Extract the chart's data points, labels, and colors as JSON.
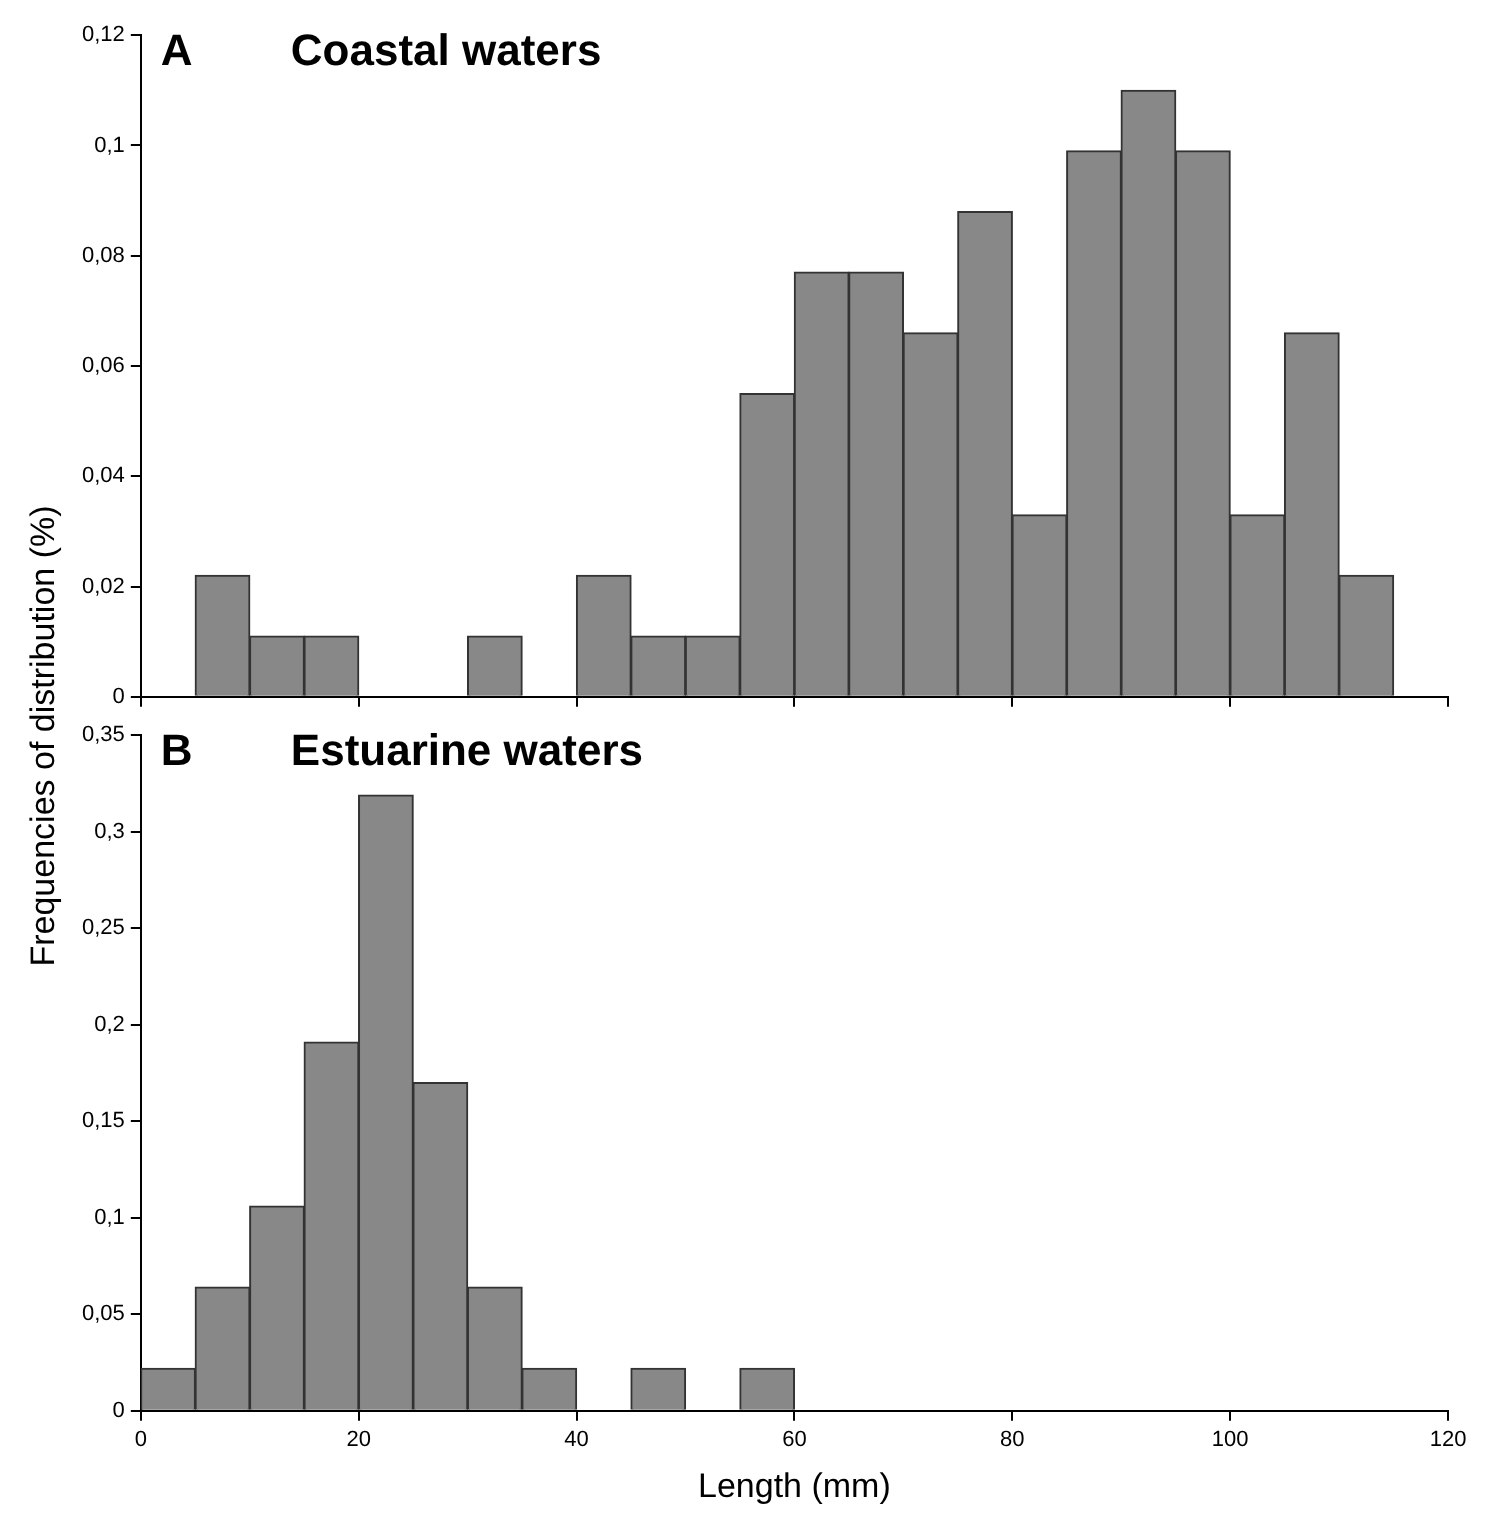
{
  "chart_data": [
    {
      "type": "histogram",
      "title": "Coastal waters",
      "annotations": [
        "A"
      ],
      "ylabel": "Frequencies of distribution (%)",
      "color": "#888888",
      "bins": [
        0,
        5,
        10,
        15,
        20,
        25,
        30,
        35,
        40,
        45,
        50,
        55,
        60,
        65,
        70,
        75,
        80,
        85,
        90,
        95,
        100,
        105,
        110,
        115
      ],
      "values": [
        0,
        0.022,
        0.011,
        0.011,
        0,
        0,
        0.011,
        0,
        0.022,
        0.011,
        0.011,
        0.055,
        0.077,
        0.077,
        0.066,
        0.088,
        0.033,
        0.099,
        0.11,
        0.099,
        0.033,
        0.066,
        0.022
      ],
      "xlim": [
        0,
        120
      ],
      "xticks": [
        {
          "value": 0,
          "label": null
        },
        {
          "value": 20,
          "label": null
        },
        {
          "value": 40,
          "label": null
        },
        {
          "value": 60,
          "label": null
        },
        {
          "value": 80,
          "label": null
        },
        {
          "value": 100,
          "label": null
        },
        {
          "value": 120,
          "label": null
        }
      ],
      "ylim": [
        0,
        0.12
      ],
      "yticks": [
        0,
        {
          "value": 0.02,
          "label": "0,02"
        },
        {
          "value": 0.04,
          "label": "0,04"
        },
        {
          "value": 0.06,
          "label": "0,06"
        },
        {
          "value": 0.08,
          "label": "0,08"
        },
        {
          "value": 0.1,
          "label": "0,1"
        },
        {
          "value": 0.12,
          "label": "0,12"
        }
      ],
      "tick_labels": "y",
      "grid": false,
      "legend": false
    },
    {
      "type": "histogram",
      "title": "Estuarine waters",
      "annotations": [
        "B"
      ],
      "xlabel": "Length (mm)",
      "color": "#888888",
      "bins": [
        0,
        5,
        10,
        15,
        20,
        25,
        30,
        35,
        40,
        45,
        50,
        55,
        60
      ],
      "values": [
        0.022,
        0.064,
        0.106,
        0.191,
        0.319,
        0.17,
        0.064,
        0.022,
        0,
        0.022,
        0,
        0.022
      ],
      "xlim": [
        0,
        120
      ],
      "xticks": [
        0,
        20,
        40,
        60,
        80,
        100,
        120
      ],
      "ylim": [
        0,
        0.35
      ],
      "yticks": [
        0,
        {
          "value": 0.05,
          "label": "0,05"
        },
        {
          "value": 0.1,
          "label": "0,1"
        },
        {
          "value": 0.15,
          "label": "0,15"
        },
        {
          "value": 0.2,
          "label": "0,2"
        },
        {
          "value": 0.25,
          "label": "0,25"
        },
        {
          "value": 0.3,
          "label": "0,3"
        },
        {
          "value": 0.35,
          "label": "0,35"
        }
      ],
      "grid": false,
      "legend": false
    }
  ]
}
